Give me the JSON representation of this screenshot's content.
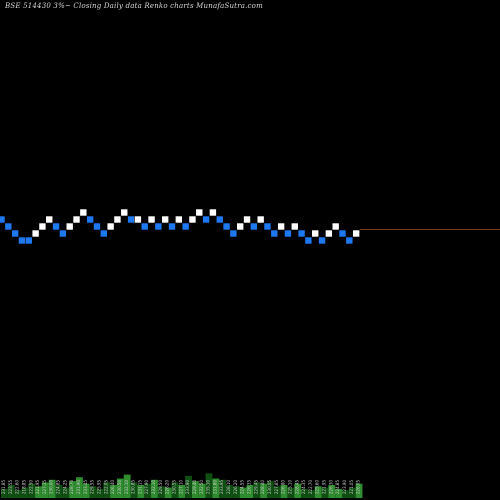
{
  "chart_data": {
    "type": "renko",
    "title": "BSE 514430  3%~  Closing Daily data  Renko  charts MunafaSutra.com",
    "colors": {
      "background": "#000000",
      "up_brick": "#ffffff",
      "down_brick": "#1e78f0",
      "last_price_line": "#a0522d",
      "volume_up": "#2e8b2e",
      "volume_down": "#0f4f12"
    },
    "grid": false,
    "bricks": [
      {
        "dir": "down",
        "level": 0
      },
      {
        "dir": "down",
        "level": -1
      },
      {
        "dir": "down",
        "level": -2
      },
      {
        "dir": "down",
        "level": -3
      },
      {
        "dir": "down",
        "level": -3
      },
      {
        "dir": "up",
        "level": -2
      },
      {
        "dir": "up",
        "level": -1
      },
      {
        "dir": "up",
        "level": 0
      },
      {
        "dir": "down",
        "level": -1
      },
      {
        "dir": "down",
        "level": -2
      },
      {
        "dir": "up",
        "level": -1
      },
      {
        "dir": "up",
        "level": 0
      },
      {
        "dir": "up",
        "level": 1
      },
      {
        "dir": "down",
        "level": 0
      },
      {
        "dir": "down",
        "level": -1
      },
      {
        "dir": "down",
        "level": -2
      },
      {
        "dir": "up",
        "level": -1
      },
      {
        "dir": "up",
        "level": 0
      },
      {
        "dir": "up",
        "level": 1
      },
      {
        "dir": "down",
        "level": 0
      },
      {
        "dir": "up",
        "level": 0
      },
      {
        "dir": "down",
        "level": -1
      },
      {
        "dir": "up",
        "level": 0
      },
      {
        "dir": "down",
        "level": -1
      },
      {
        "dir": "up",
        "level": 0
      },
      {
        "dir": "down",
        "level": -1
      },
      {
        "dir": "up",
        "level": 0
      },
      {
        "dir": "down",
        "level": -1
      },
      {
        "dir": "up",
        "level": 0
      },
      {
        "dir": "up",
        "level": 1
      },
      {
        "dir": "down",
        "level": 0
      },
      {
        "dir": "up",
        "level": 1
      },
      {
        "dir": "down",
        "level": 0
      },
      {
        "dir": "down",
        "level": -1
      },
      {
        "dir": "down",
        "level": -2
      },
      {
        "dir": "up",
        "level": -1
      },
      {
        "dir": "up",
        "level": 0
      },
      {
        "dir": "down",
        "level": -1
      },
      {
        "dir": "up",
        "level": 0
      },
      {
        "dir": "down",
        "level": -1
      },
      {
        "dir": "down",
        "level": -2
      },
      {
        "dir": "up",
        "level": -1
      },
      {
        "dir": "down",
        "level": -2
      },
      {
        "dir": "up",
        "level": -1
      },
      {
        "dir": "down",
        "level": -2
      },
      {
        "dir": "down",
        "level": -3
      },
      {
        "dir": "up",
        "level": -2
      },
      {
        "dir": "down",
        "level": -3
      },
      {
        "dir": "up",
        "level": -2
      },
      {
        "dir": "up",
        "level": -1
      },
      {
        "dir": "down",
        "level": -2
      },
      {
        "dir": "down",
        "level": -3
      },
      {
        "dir": "up",
        "level": -2
      }
    ],
    "last_price_level": -2,
    "volume_labels": [
      "231.85",
      "223.55",
      "222.60",
      "218.85",
      "222.50",
      "221.95",
      "227.35",
      "230.00",
      "224.85",
      "224.25",
      "228.70",
      "231.90",
      "233.45",
      "229.55",
      "225.95",
      "222.05",
      "226.40",
      "230.50",
      "232.10",
      "230.85",
      "231.15",
      "227.90",
      "232.10",
      "229.50",
      "228.20",
      "230.55",
      "227.10",
      "233.90",
      "229.40",
      "232.50",
      "235.10",
      "231.80",
      "233.95",
      "228.10",
      "226.20",
      "224.55",
      "226.35",
      "229.45",
      "228.40",
      "230.05",
      "227.85",
      "226.80",
      "225.10",
      "228.45",
      "224.35",
      "222.70",
      "225.60",
      "221.95",
      "226.30",
      "224.85",
      "223.90",
      "221.05",
      "226.05"
    ],
    "volumes": [
      0.35,
      0.5,
      0.3,
      0.4,
      0.55,
      0.45,
      0.6,
      0.7,
      0.5,
      0.4,
      0.65,
      0.8,
      0.55,
      0.45,
      0.35,
      0.6,
      0.5,
      0.75,
      0.9,
      0.6,
      0.5,
      0.55,
      0.7,
      0.45,
      0.4,
      0.6,
      0.5,
      0.85,
      0.65,
      0.55,
      0.95,
      0.75,
      0.7,
      0.5,
      0.45,
      0.4,
      0.5,
      0.6,
      0.55,
      0.65,
      0.45,
      0.5,
      0.4,
      0.55,
      0.35,
      0.3,
      0.45,
      0.4,
      0.5,
      0.35,
      0.3,
      0.4,
      0.55
    ]
  }
}
